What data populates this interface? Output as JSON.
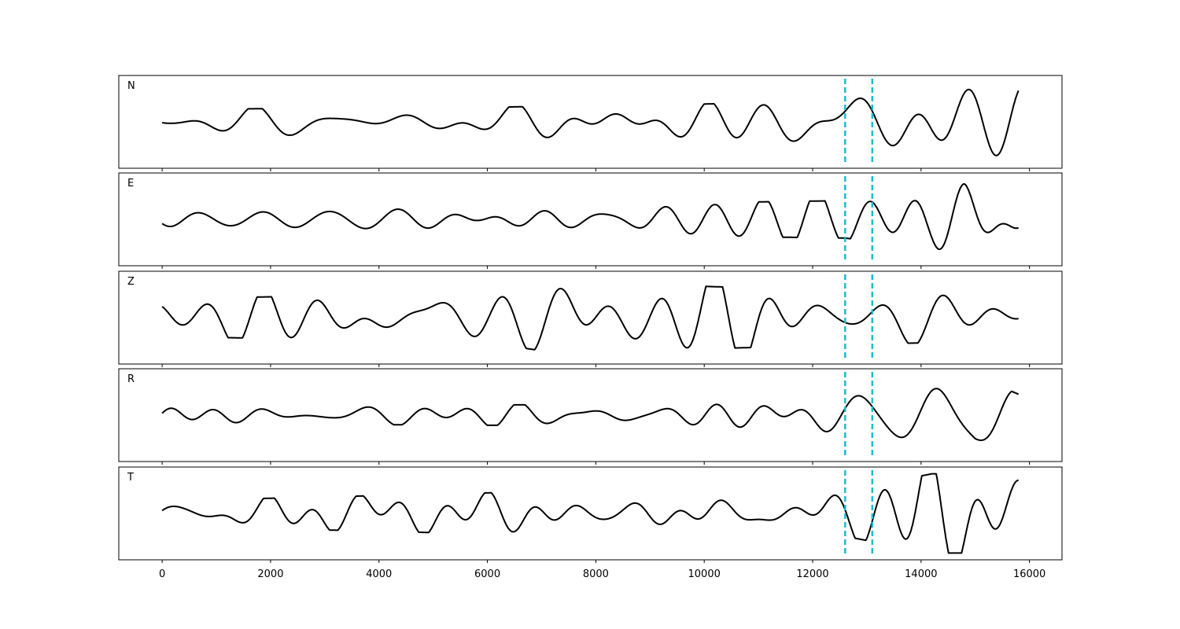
{
  "chart_data": {
    "type": "line",
    "layout": "stacked-panels",
    "shared_x": true,
    "xlim": [
      -800,
      16600
    ],
    "x_ticks": [
      0,
      2000,
      4000,
      6000,
      8000,
      10000,
      12000,
      14000,
      16000
    ],
    "x_tick_labels": [
      "0",
      "2000",
      "4000",
      "6000",
      "8000",
      "10000",
      "12000",
      "14000",
      "16000"
    ],
    "y_ticks_shown": false,
    "grid": false,
    "line_color": "#000000",
    "marker_color": "#17becf",
    "markers": [
      {
        "x": 12600,
        "style": "dashed"
      },
      {
        "x": 13100,
        "style": "dashed"
      }
    ],
    "panels": [
      {
        "label": "N",
        "amplitude_profile": [
          [
            0,
            0.3
          ],
          [
            6000,
            0.35
          ],
          [
            11000,
            0.45
          ],
          [
            12600,
            0.55
          ],
          [
            14200,
            0.85
          ],
          [
            15800,
            0.9
          ]
        ]
      },
      {
        "label": "E",
        "amplitude_profile": [
          [
            0,
            0.25
          ],
          [
            7000,
            0.3
          ],
          [
            10000,
            0.4
          ],
          [
            12600,
            0.45
          ],
          [
            14200,
            0.7
          ],
          [
            14800,
            1.0
          ],
          [
            15800,
            0.6
          ]
        ]
      },
      {
        "label": "Z",
        "amplitude_profile": [
          [
            0,
            0.45
          ],
          [
            6000,
            0.6
          ],
          [
            7800,
            0.95
          ],
          [
            10000,
            0.75
          ],
          [
            12600,
            0.65
          ],
          [
            15800,
            0.55
          ]
        ]
      },
      {
        "label": "R",
        "amplitude_profile": [
          [
            0,
            0.2
          ],
          [
            7000,
            0.25
          ],
          [
            10000,
            0.4
          ],
          [
            12600,
            0.45
          ],
          [
            14400,
            0.8
          ],
          [
            15000,
            0.95
          ],
          [
            15800,
            0.5
          ]
        ]
      },
      {
        "label": "T",
        "amplitude_profile": [
          [
            0,
            0.3
          ],
          [
            7800,
            0.55
          ],
          [
            11000,
            0.45
          ],
          [
            12600,
            0.55
          ],
          [
            14200,
            0.95
          ],
          [
            15800,
            0.95
          ]
        ]
      }
    ],
    "x_start": 0,
    "x_end": 15800
  }
}
